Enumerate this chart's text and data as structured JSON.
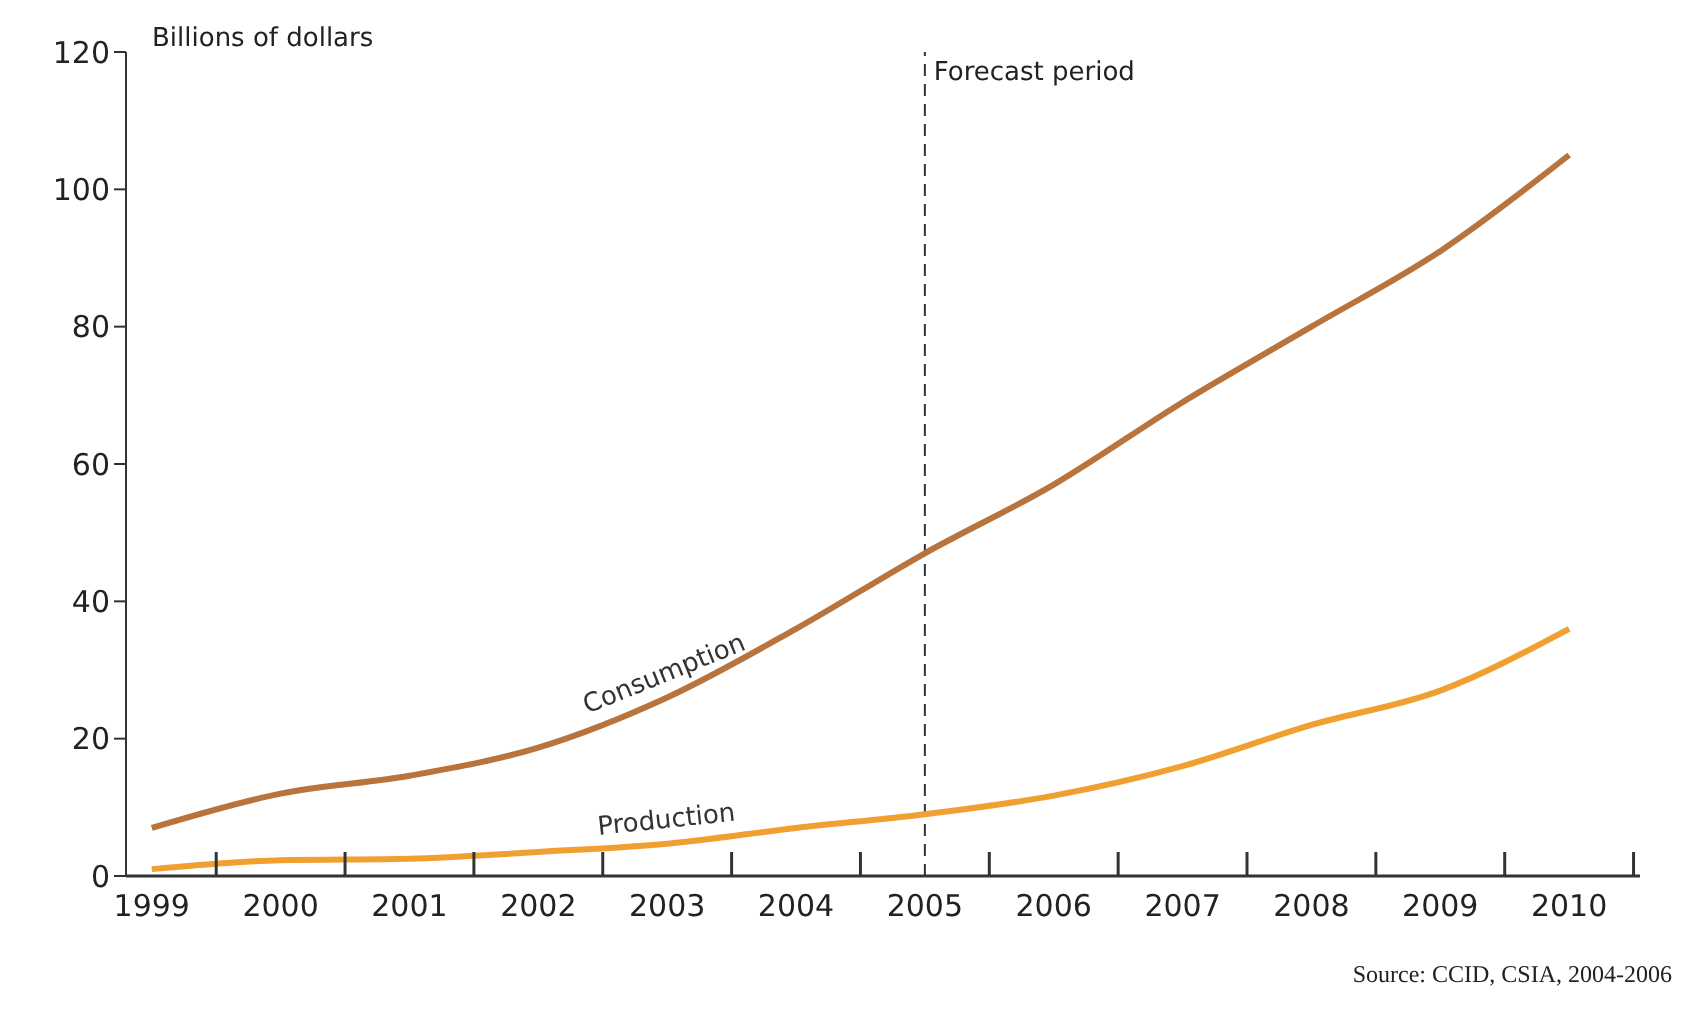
{
  "chart_data": {
    "type": "line",
    "ylabel": "Billions of dollars",
    "x": [
      1999,
      2000,
      2001,
      2002,
      2003,
      2004,
      2005,
      2006,
      2007,
      2008,
      2009,
      2010
    ],
    "series": [
      {
        "name": "Consumption",
        "color": "#b8743c",
        "values": [
          7,
          12,
          14.6,
          18.7,
          26,
          36,
          47,
          57,
          69,
          80,
          91,
          105
        ]
      },
      {
        "name": "Production",
        "color": "#f0a030",
        "values": [
          1,
          2.3,
          2.5,
          3.5,
          4.7,
          7,
          9,
          11.7,
          16,
          22,
          27,
          36
        ]
      }
    ],
    "xlim": [
      1998.8,
      2010.55
    ],
    "xticks": [
      1999,
      {
        "value": 1999.5,
        "label": null
      },
      2000,
      {
        "value": 2000.5,
        "label": null
      },
      2001,
      {
        "value": 2001.5,
        "label": null
      },
      2002,
      {
        "value": 2002.5,
        "label": null
      },
      2003,
      {
        "value": 2003.5,
        "label": null
      },
      2004,
      {
        "value": 2004.5,
        "label": null
      },
      2005,
      {
        "value": 2005.5,
        "label": null
      },
      2006,
      {
        "value": 2006.5,
        "label": null
      },
      2007,
      {
        "value": 2007.5,
        "label": null
      },
      2008,
      {
        "value": 2008.5,
        "label": null
      },
      2009,
      {
        "value": 2009.5,
        "label": null
      },
      2010,
      {
        "value": 2010.5,
        "label": null
      }
    ],
    "ylim": [
      0,
      120
    ],
    "yticks": [
      0,
      20,
      40,
      60,
      80,
      100,
      120
    ],
    "ref_lines": [
      {
        "axis": "x",
        "value": 2005,
        "label": "Forecast period",
        "line_style": "dashed",
        "color": "#333333"
      }
    ],
    "grid": false,
    "legend": false,
    "marker": "none",
    "line_style": "solid",
    "annotations": [
      "Source: CCID, CSIA, 2004-2006"
    ]
  }
}
